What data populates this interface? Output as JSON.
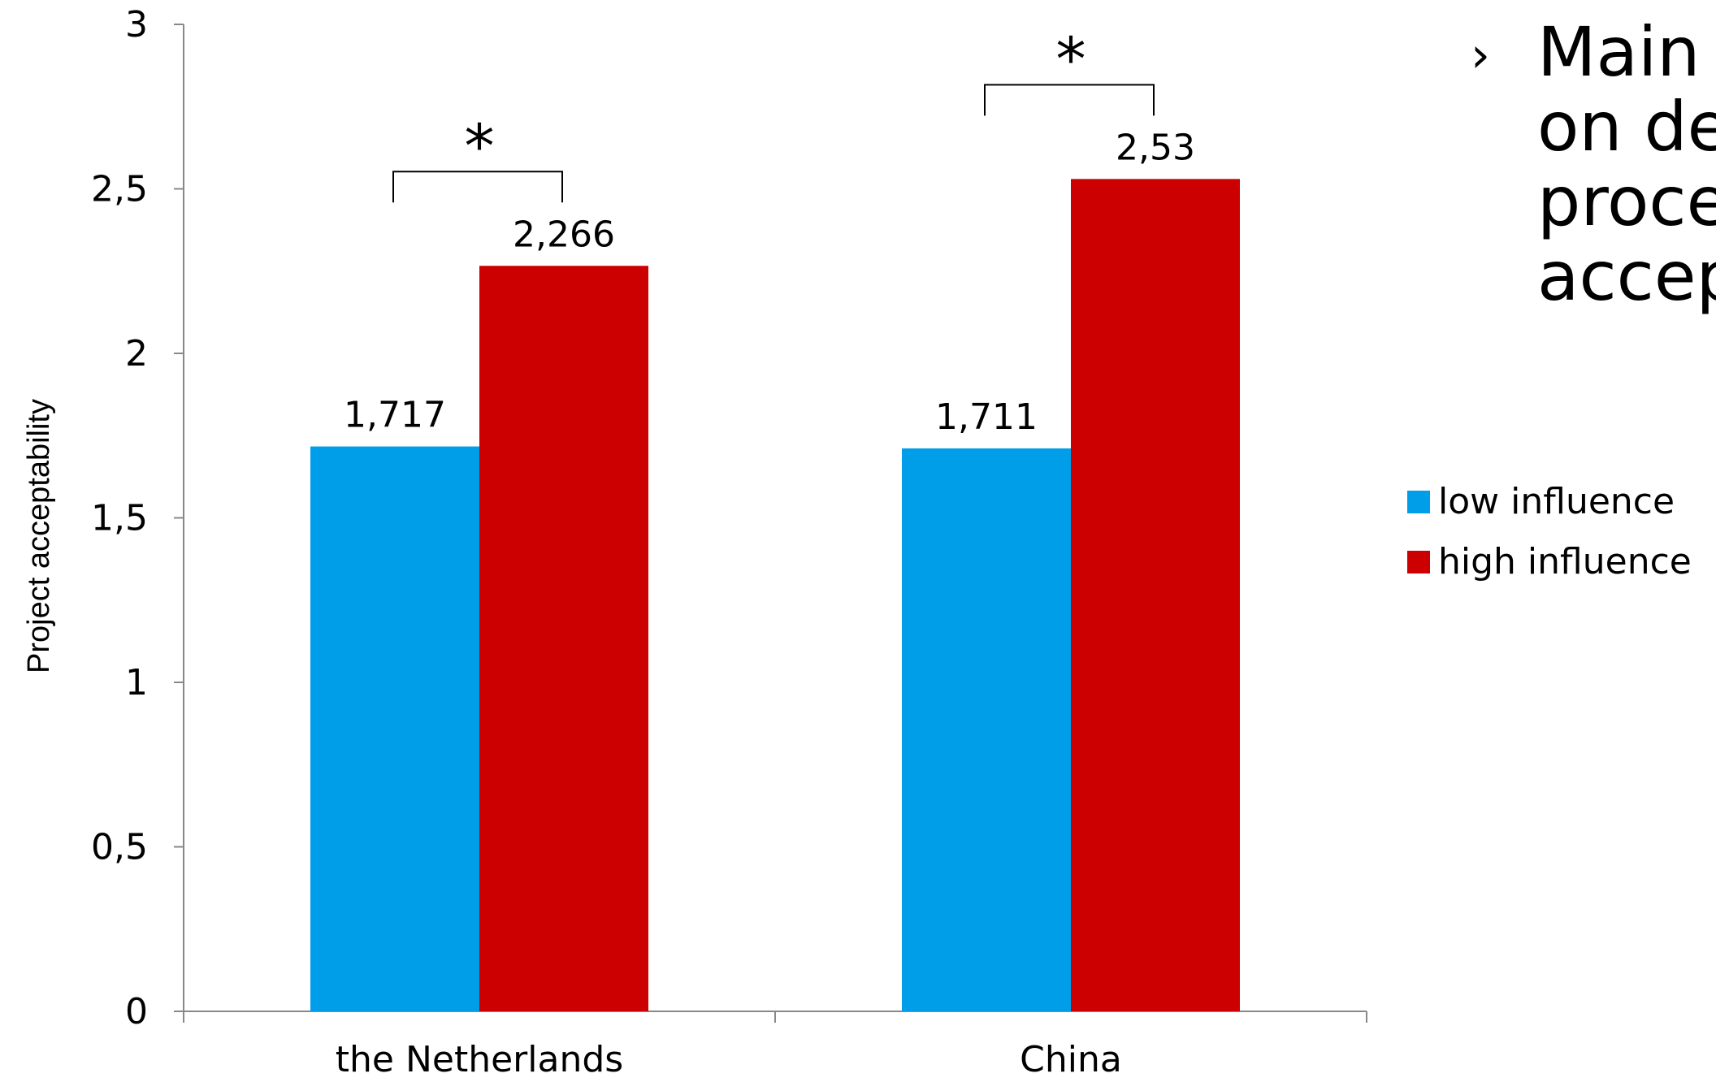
{
  "chart_data": {
    "type": "bar",
    "categories": [
      "the Netherlands",
      "China"
    ],
    "series": [
      {
        "name": "low influence",
        "color": "#009DE8",
        "values": [
          1.717,
          1.711
        ],
        "labels": [
          "1,717",
          "1,711"
        ]
      },
      {
        "name": "high influence",
        "color": "#CC0000",
        "values": [
          2.266,
          2.53
        ],
        "labels": [
          "2,266",
          "2,53"
        ]
      }
    ],
    "ylabel": "Project acceptability",
    "ylim": [
      0,
      3
    ],
    "yticks": [
      0,
      0.5,
      1,
      1.5,
      2,
      2.5,
      3
    ],
    "ytick_labels": [
      "0",
      "0,5",
      "1",
      "1,5",
      "2",
      "2,5",
      "3"
    ],
    "grid": false,
    "legend_position": "right",
    "significance": [
      {
        "category": "the Netherlands",
        "marker": "*"
      },
      {
        "category": "China",
        "marker": "*"
      }
    ]
  },
  "slide_text": {
    "bullet_marker": "›",
    "lines": [
      "Main",
      "on de",
      "proce",
      "accep"
    ]
  }
}
